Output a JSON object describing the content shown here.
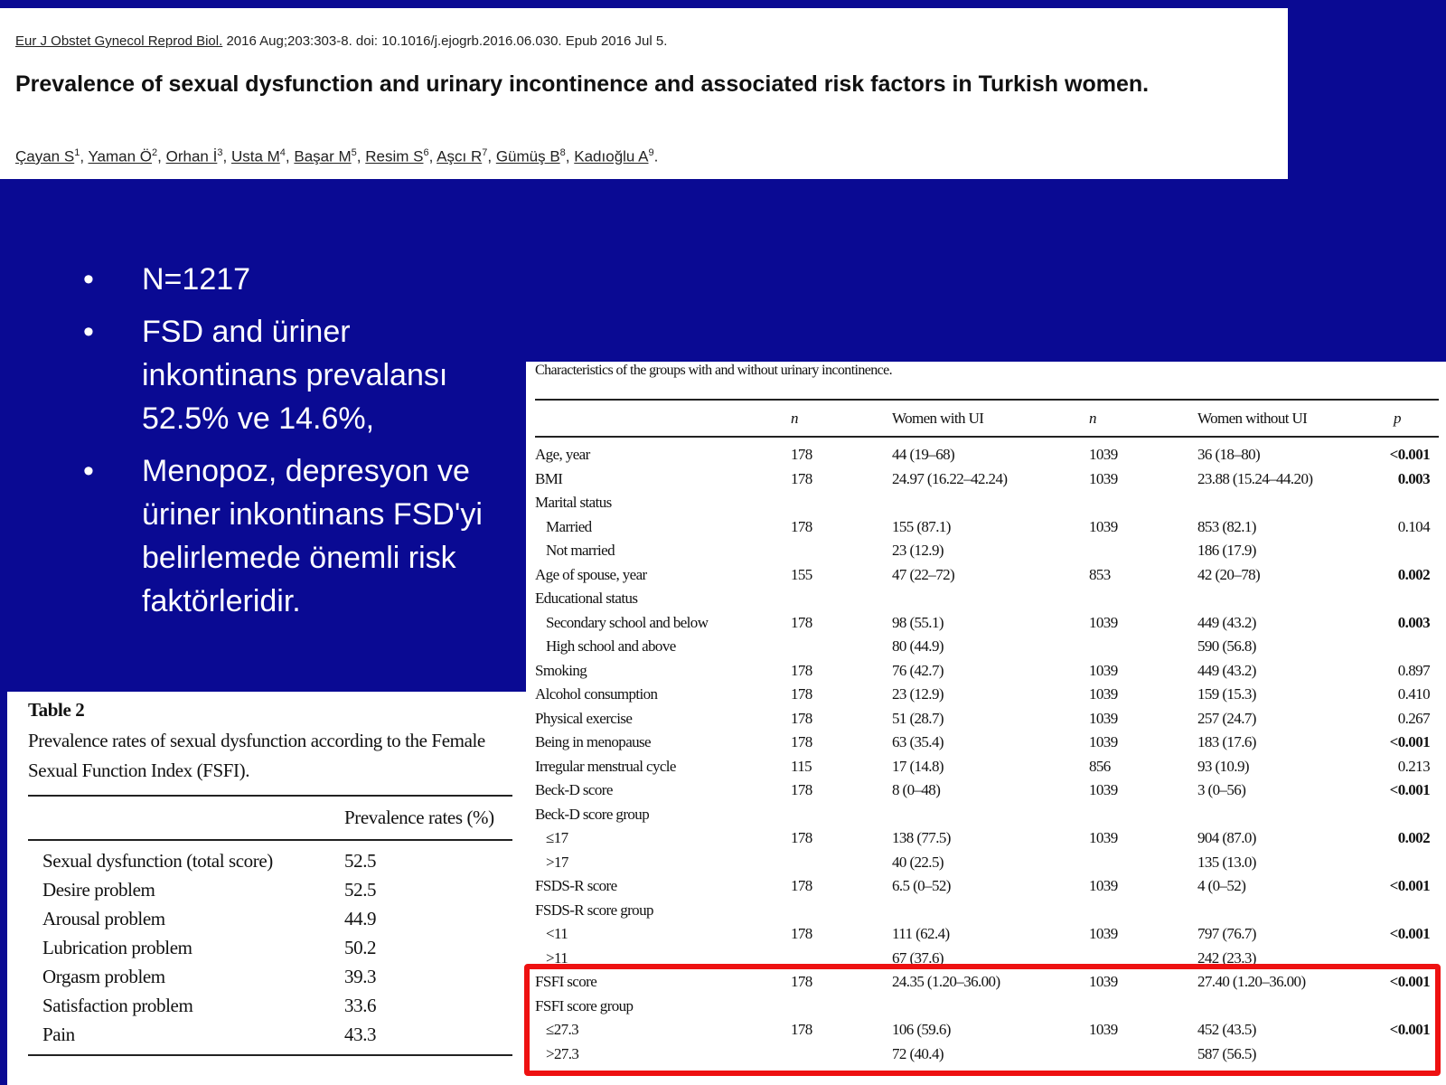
{
  "citation": {
    "journal": "Eur J Obstet Gynecol Reprod Biol.",
    "details": "2016 Aug;203:303-8. doi: 10.1016/j.ejogrb.2016.06.030. Epub 2016 Jul 5."
  },
  "title": "Prevalence of sexual dysfunction and urinary incontinence and associated risk factors in Turkish women.",
  "authors": [
    {
      "name": "Çayan S",
      "sup": 1,
      "punct": ","
    },
    {
      "name": "Yaman Ö",
      "sup": 2,
      "punct": ","
    },
    {
      "name": "Orhan İ",
      "sup": 3,
      "punct": ","
    },
    {
      "name": "Usta M",
      "sup": 4,
      "punct": ","
    },
    {
      "name": "Başar M",
      "sup": 5,
      "punct": ","
    },
    {
      "name": "Resim S",
      "sup": 6,
      "punct": ","
    },
    {
      "name": "Aşcı R",
      "sup": 7,
      "punct": ","
    },
    {
      "name": "Gümüş B",
      "sup": 8,
      "punct": ","
    },
    {
      "name": "Kadıoğlu A",
      "sup": 9,
      "punct": "."
    }
  ],
  "bullets": [
    "N=1217",
    "FSD and üriner inkontinans prevalansı 52.5% ve 14.6%,",
    "Menopoz, depresyon ve üriner inkontinans FSD'yi belirlemede önemli risk faktörleridir."
  ],
  "table1": {
    "caption": "Characteristics of the groups with and without urinary incontinence.",
    "headers": [
      "n",
      "Women with UI",
      "n",
      "Women without UI",
      "p"
    ],
    "rows": [
      {
        "cells": [
          "Age, year",
          178,
          "44 (19–68)",
          1039,
          "36 (18–80)",
          "<0.001"
        ],
        "bold": true
      },
      {
        "cells": [
          "BMI",
          178,
          "24.97 (16.22–42.24)",
          1039,
          "23.88 (15.24–44.20)",
          "0.003"
        ],
        "bold": true
      },
      {
        "cells": [
          "Marital status",
          null,
          null,
          null,
          null,
          null
        ]
      },
      {
        "cells": [
          "Married",
          178,
          "155 (87.1)",
          1039,
          "853 (82.1)",
          "0.104"
        ],
        "indent": true
      },
      {
        "cells": [
          "Not married",
          null,
          "23 (12.9)",
          null,
          "186 (17.9)",
          null
        ],
        "indent": true
      },
      {
        "cells": [
          "Age of spouse, year",
          155,
          "47 (22–72)",
          853,
          "42 (20–78)",
          "0.002"
        ],
        "bold": true
      },
      {
        "cells": [
          "Educational status",
          null,
          null,
          null,
          null,
          null
        ]
      },
      {
        "cells": [
          "Secondary school and below",
          178,
          "98 (55.1)",
          1039,
          "449 (43.2)",
          "0.003"
        ],
        "indent": true,
        "bold": true
      },
      {
        "cells": [
          "High school and above",
          null,
          "80 (44.9)",
          null,
          "590 (56.8)",
          null
        ],
        "indent": true
      },
      {
        "cells": [
          "Smoking",
          178,
          "76 (42.7)",
          1039,
          "449 (43.2)",
          "0.897"
        ]
      },
      {
        "cells": [
          "Alcohol consumption",
          178,
          "23 (12.9)",
          1039,
          "159 (15.3)",
          "0.410"
        ]
      },
      {
        "cells": [
          "Physical exercise",
          178,
          "51 (28.7)",
          1039,
          "257 (24.7)",
          "0.267"
        ]
      },
      {
        "cells": [
          "Being in menopause",
          178,
          "63 (35.4)",
          1039,
          "183 (17.6)",
          "<0.001"
        ],
        "bold": true
      },
      {
        "cells": [
          "Irregular menstrual cycle",
          115,
          "17 (14.8)",
          856,
          "93 (10.9)",
          "0.213"
        ]
      },
      {
        "cells": [
          "Beck-D score",
          178,
          "8 (0–48)",
          1039,
          "3 (0–56)",
          "<0.001"
        ],
        "bold": true
      },
      {
        "cells": [
          "Beck-D score group",
          null,
          null,
          null,
          null,
          null
        ]
      },
      {
        "cells": [
          "≤17",
          178,
          "138 (77.5)",
          1039,
          "904 (87.0)",
          "0.002"
        ],
        "indent": true,
        "bold": true
      },
      {
        "cells": [
          ">17",
          null,
          "40 (22.5)",
          null,
          "135 (13.0)",
          null
        ],
        "indent": true
      },
      {
        "cells": [
          "FSDS-R score",
          178,
          "6.5 (0–52)",
          1039,
          "4 (0–52)",
          "<0.001"
        ],
        "bold": true
      },
      {
        "cells": [
          "FSDS-R score group",
          null,
          null,
          null,
          null,
          null
        ]
      },
      {
        "cells": [
          "<11",
          178,
          "111 (62.4)",
          1039,
          "797 (76.7)",
          "<0.001"
        ],
        "indent": true,
        "bold": true
      },
      {
        "cells": [
          ">11",
          null,
          "67 (37.6)",
          null,
          "242 (23.3)",
          null
        ],
        "indent": true
      },
      {
        "cells": [
          "FSFI score",
          178,
          "24.35 (1.20–36.00)",
          1039,
          "27.40 (1.20–36.00)",
          "<0.001"
        ],
        "bold": true
      },
      {
        "cells": [
          "FSFI score group",
          null,
          null,
          null,
          null,
          null
        ]
      },
      {
        "cells": [
          "≤27.3",
          178,
          "106 (59.6)",
          1039,
          "452 (43.5)",
          "<0.001"
        ],
        "indent": true,
        "bold": true
      },
      {
        "cells": [
          ">27.3",
          null,
          "72 (40.4)",
          null,
          "587 (56.5)",
          null
        ],
        "indent": true
      }
    ]
  },
  "table2": {
    "label": "Table 2",
    "caption": "Prevalence rates of sexual dysfunction according to the Female Sexual Function Index (FSFI).",
    "header": "Prevalence rates (%)",
    "rows": [
      [
        "Sexual dysfunction (total score)",
        52.5
      ],
      [
        "Desire problem",
        52.5
      ],
      [
        "Arousal problem",
        44.9
      ],
      [
        "Lubrication problem",
        50.2
      ],
      [
        "Orgasm problem",
        39.3
      ],
      [
        "Satisfaction problem",
        33.6
      ],
      [
        "Pain",
        43.3
      ]
    ]
  }
}
